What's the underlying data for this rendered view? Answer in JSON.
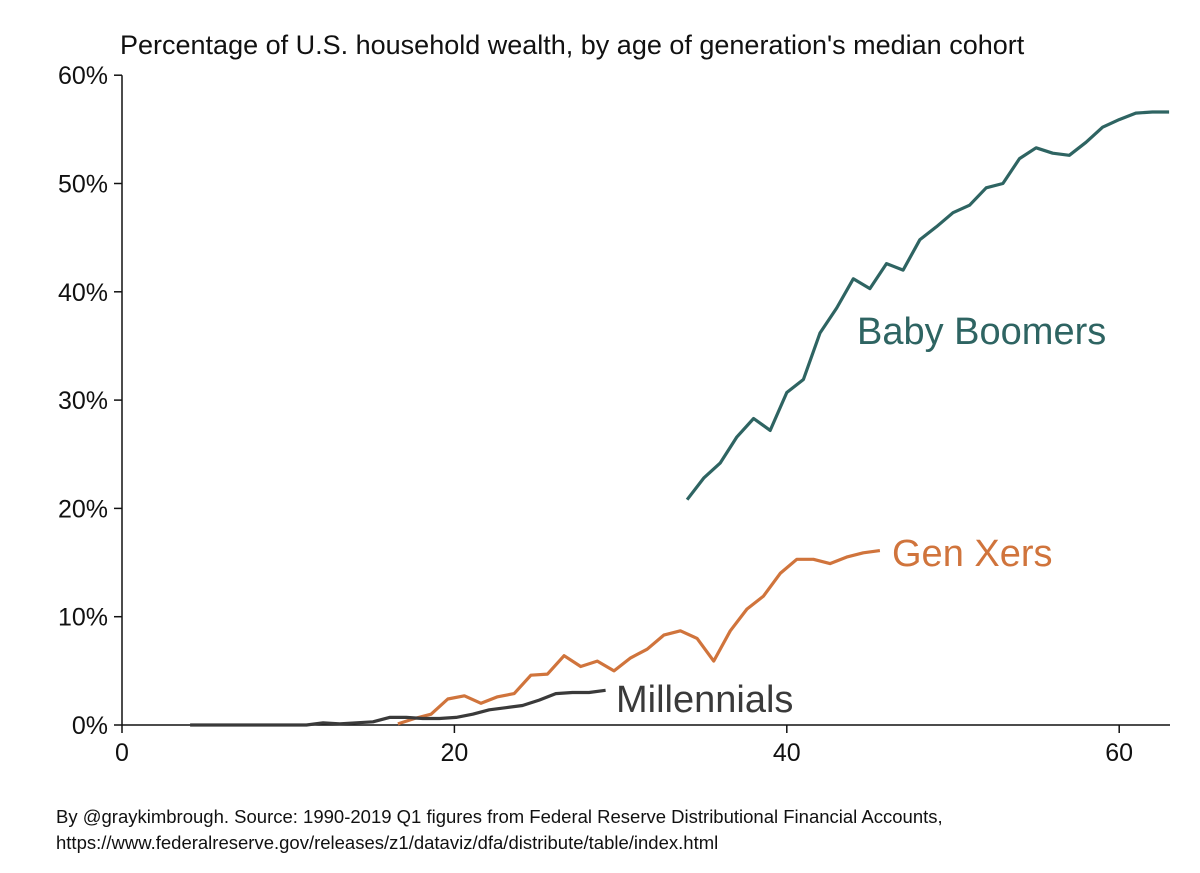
{
  "chart_data": {
    "type": "line",
    "title": "Percentage of U.S. household wealth, by age of generation's median cohort",
    "xlabel": "",
    "ylabel": "",
    "xlim": [
      0,
      63
    ],
    "ylim": [
      0,
      60
    ],
    "x_ticks": [
      0,
      20,
      40,
      60
    ],
    "y_ticks": [
      0,
      10,
      20,
      30,
      40,
      50,
      60
    ],
    "y_tick_labels": [
      "0%",
      "10%",
      "20%",
      "30%",
      "40%",
      "50%",
      "60%"
    ],
    "grid": false,
    "legend": "direct labels",
    "series": [
      {
        "name": "Baby Boomers",
        "color": "#2e6462",
        "x": [
          34,
          35,
          36,
          37,
          38,
          39,
          40,
          41,
          42,
          43,
          44,
          45,
          46,
          47,
          48,
          49,
          50,
          51,
          52,
          53,
          54,
          55,
          56,
          57,
          58,
          59,
          60,
          61,
          62,
          63
        ],
        "y": [
          20.8,
          22.8,
          24.2,
          26.6,
          28.3,
          27.2,
          30.7,
          31.9,
          36.2,
          38.5,
          41.2,
          40.3,
          42.6,
          42.0,
          44.8,
          46.0,
          47.3,
          48.0,
          49.6,
          50.0,
          52.3,
          53.3,
          52.8,
          52.6,
          53.8,
          55.2,
          55.9,
          56.5,
          56.6,
          56.6
        ]
      },
      {
        "name": "Gen Xers",
        "color": "#d0743c",
        "x": [
          16.6,
          17.6,
          18.6,
          19.6,
          20.6,
          21.6,
          22.6,
          23.6,
          24.6,
          25.6,
          26.6,
          27.6,
          28.6,
          29.6,
          30.6,
          31.6,
          32.6,
          33.6,
          34.6,
          35.6,
          36.6,
          37.6,
          38.6,
          39.6,
          40.6,
          41.6,
          42.6,
          43.6,
          44.6,
          45.6
        ],
        "y": [
          0.1,
          0.6,
          1.0,
          2.4,
          2.7,
          2.0,
          2.6,
          2.9,
          4.6,
          4.7,
          6.4,
          5.4,
          5.9,
          5.0,
          6.2,
          7.0,
          8.3,
          8.7,
          8.0,
          5.9,
          8.7,
          10.7,
          11.9,
          14.0,
          15.3,
          15.3,
          14.9,
          15.5,
          15.9,
          16.1
        ]
      },
      {
        "name": "Millennials",
        "color": "#3a3a3a",
        "x": [
          4.1,
          5.1,
          6.1,
          7.1,
          8.1,
          9.1,
          10.1,
          11.1,
          12.1,
          13.1,
          14.1,
          15.1,
          16.1,
          17.1,
          18.1,
          19.1,
          20.1,
          21.1,
          22.1,
          23.1,
          24.1,
          25.1,
          26.1,
          27.1,
          28.1,
          29.1
        ],
        "y": [
          0,
          0,
          0,
          0,
          0,
          0,
          0,
          0,
          0.2,
          0.1,
          0.2,
          0.3,
          0.7,
          0.7,
          0.6,
          0.6,
          0.7,
          1.0,
          1.4,
          1.6,
          1.8,
          2.3,
          2.9,
          3.0,
          3.0,
          3.2
        ]
      }
    ],
    "source_note": [
      "By @graykimbrough. Source: 1990-2019 Q1 figures from Federal Reserve Distributional Financial Accounts,",
      "https://www.federalreserve.gov/releases/z1/dataviz/dfa/distribute/table/index.html"
    ]
  }
}
